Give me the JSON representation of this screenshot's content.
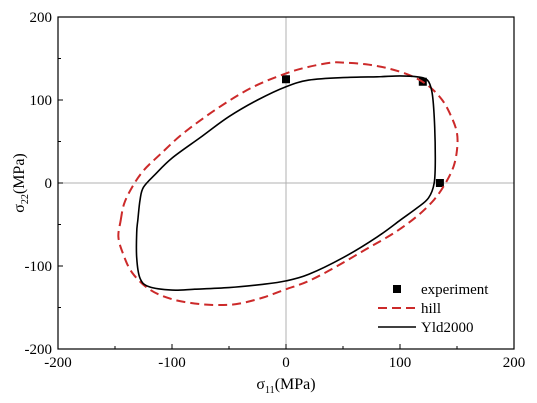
{
  "chart_data": {
    "type": "line",
    "xlim": [
      -200,
      200
    ],
    "ylim": [
      -200,
      200
    ],
    "x_ticks": [
      -200,
      -100,
      0,
      100,
      200
    ],
    "y_ticks": [
      -200,
      -100,
      0,
      100,
      200
    ],
    "x_tick_labels": [
      "-200",
      "-100",
      "0",
      "100",
      "200"
    ],
    "y_tick_labels": [
      "-200",
      "-100",
      "0",
      "100",
      "200"
    ],
    "xlabel": {
      "symbol": "σ",
      "subscript": "11",
      "unit": "(MPa)"
    },
    "ylabel": {
      "symbol": "σ",
      "subscript": "22",
      "unit": "(MPa)"
    },
    "grid": false,
    "zero_lines": true,
    "legend_position": "bottom-right",
    "series": [
      {
        "name": "experiment",
        "style": "square-markers",
        "color": "#000000",
        "points": [
          [
            0,
            125
          ],
          [
            120,
            122
          ],
          [
            135,
            0
          ]
        ]
      },
      {
        "name": "hill",
        "style": "dashed",
        "color": "#cc2a2a",
        "points": [
          [
            -145,
            -45
          ],
          [
            -142,
            -25
          ],
          [
            -135,
            -5
          ],
          [
            -125,
            15
          ],
          [
            -110,
            35
          ],
          [
            -90,
            60
          ],
          [
            -60,
            90
          ],
          [
            -30,
            115
          ],
          [
            0,
            132
          ],
          [
            20,
            140
          ],
          [
            40,
            145
          ],
          [
            50,
            145
          ],
          [
            70,
            143
          ],
          [
            90,
            138
          ],
          [
            110,
            129
          ],
          [
            125,
            117
          ],
          [
            137,
            100
          ],
          [
            145,
            80
          ],
          [
            150,
            60
          ],
          [
            150,
            40
          ],
          [
            147,
            20
          ],
          [
            140,
            0
          ],
          [
            130,
            -20
          ],
          [
            115,
            -40
          ],
          [
            95,
            -60
          ],
          [
            70,
            -80
          ],
          [
            45,
            -100
          ],
          [
            20,
            -118
          ],
          [
            0,
            -128
          ],
          [
            -20,
            -138
          ],
          [
            -40,
            -145
          ],
          [
            -55,
            -147
          ],
          [
            -75,
            -146
          ],
          [
            -100,
            -140
          ],
          [
            -120,
            -128
          ],
          [
            -135,
            -108
          ],
          [
            -143,
            -85
          ],
          [
            -147,
            -65
          ],
          [
            -145,
            -45
          ]
        ]
      },
      {
        "name": "Yld2000",
        "style": "solid",
        "color": "#000000",
        "points": [
          [
            -130,
            -45
          ],
          [
            -128,
            -20
          ],
          [
            -125,
            -5
          ],
          [
            -115,
            10
          ],
          [
            -100,
            30
          ],
          [
            -75,
            55
          ],
          [
            -50,
            80
          ],
          [
            -25,
            100
          ],
          [
            0,
            116
          ],
          [
            20,
            124
          ],
          [
            50,
            127
          ],
          [
            80,
            128
          ],
          [
            100,
            129
          ],
          [
            115,
            128
          ],
          [
            124,
            124
          ],
          [
            128,
            110
          ],
          [
            130,
            80
          ],
          [
            131,
            30
          ],
          [
            130,
            0
          ],
          [
            125,
            -18
          ],
          [
            115,
            -30
          ],
          [
            100,
            -45
          ],
          [
            80,
            -65
          ],
          [
            50,
            -90
          ],
          [
            20,
            -110
          ],
          [
            0,
            -118
          ],
          [
            -20,
            -122
          ],
          [
            -50,
            -126
          ],
          [
            -80,
            -128
          ],
          [
            -100,
            -129
          ],
          [
            -120,
            -125
          ],
          [
            -128,
            -115
          ],
          [
            -131,
            -90
          ],
          [
            -131,
            -60
          ],
          [
            -130,
            -45
          ]
        ]
      }
    ]
  }
}
